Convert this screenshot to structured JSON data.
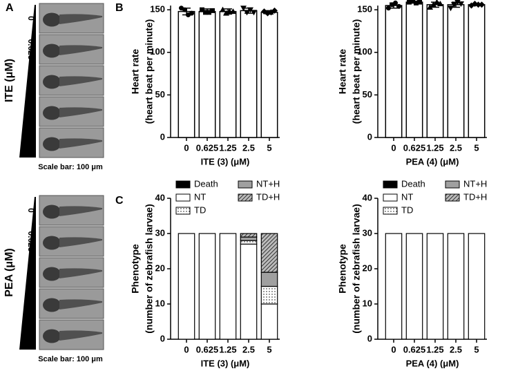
{
  "panel_a": {
    "label": "A",
    "groups": [
      {
        "title": "ITE (μM)",
        "doses": [
          "0",
          "0.625",
          "1.25",
          "2.5",
          "5"
        ],
        "scale_bar": "Scale bar: 100 μm"
      },
      {
        "title": "PEA (μM)",
        "doses": [
          "0",
          "0.625",
          "1.25",
          "2.5",
          "5"
        ],
        "scale_bar": "Scale bar: 100 μm"
      }
    ]
  },
  "chart_data": [
    {
      "type": "bar",
      "panel_label": "B",
      "y_label": [
        "Heart rate",
        "(heart beat per minute)"
      ],
      "x_label": "ITE (3) (μM)",
      "categories": [
        "0",
        "0.625",
        "1.25",
        "2.5",
        "5"
      ],
      "values": [
        148,
        148,
        148,
        149,
        147
      ],
      "errors": [
        4,
        3,
        3,
        3,
        2
      ],
      "points": [
        [
          152,
          150,
          144,
          146
        ],
        [
          150,
          147,
          147,
          149
        ],
        [
          150,
          146,
          148,
          148
        ],
        [
          152,
          147,
          150,
          147
        ],
        [
          148,
          146,
          147,
          149
        ]
      ],
      "markers": [
        "circle",
        "square",
        "triangle",
        "triangle-down",
        "diamond"
      ],
      "color": "#ffffff",
      "ylim": [
        0,
        155
      ],
      "yticks": [
        0,
        50,
        100,
        150
      ]
    },
    {
      "type": "bar",
      "y_label": [
        "Heart rate",
        "(heart beat per minute)"
      ],
      "x_label": "PEA (4) (μM)",
      "categories": [
        "0",
        "0.625",
        "1.25",
        "2.5",
        "5"
      ],
      "values": [
        155,
        159,
        156,
        156,
        156
      ],
      "errors": [
        3,
        1,
        3,
        3,
        1
      ],
      "points": [
        [
          152,
          156,
          158,
          154
        ],
        [
          159,
          160,
          158,
          159
        ],
        [
          153,
          156,
          159,
          157
        ],
        [
          152,
          156,
          159,
          157
        ],
        [
          155,
          157,
          156,
          156
        ]
      ],
      "markers": [
        "circle",
        "square",
        "triangle",
        "triangle-down",
        "diamond"
      ],
      "color": "#ffffff",
      "ylim": [
        0,
        155
      ],
      "yticks": [
        0,
        50,
        100,
        150
      ]
    },
    {
      "type": "stacked-bar",
      "panel_label": "C",
      "y_label": [
        "Phenotype",
        "(number of zebrafish larvae)"
      ],
      "x_label": "ITE (3) (μM)",
      "categories": [
        "0",
        "0.625",
        "1.25",
        "2.5",
        "5"
      ],
      "series": [
        {
          "name": "Death",
          "color": "#000000",
          "values": [
            0,
            0,
            0,
            0,
            0
          ]
        },
        {
          "name": "NT",
          "color": "#ffffff",
          "values": [
            30,
            30,
            30,
            27,
            10
          ]
        },
        {
          "name": "TD",
          "color": "#ffffff",
          "pattern": "dots",
          "values": [
            0,
            0,
            0,
            1,
            5
          ]
        },
        {
          "name": "NT+H",
          "color": "#a0a0a0",
          "values": [
            0,
            0,
            0,
            1,
            4
          ]
        },
        {
          "name": "TD+H",
          "color": "#ffffff",
          "pattern": "hatch",
          "values": [
            0,
            0,
            0,
            1,
            11
          ]
        }
      ],
      "ylim": [
        0,
        40
      ],
      "yticks": [
        0,
        10,
        20,
        30,
        40
      ]
    },
    {
      "type": "stacked-bar",
      "y_label": [
        "Phenotype",
        "(number of zebrafish larvae)"
      ],
      "x_label": "PEA (4) (μM)",
      "categories": [
        "0",
        "0.625",
        "1.25",
        "2.5",
        "5"
      ],
      "series": [
        {
          "name": "Death",
          "color": "#000000",
          "values": [
            0,
            0,
            0,
            0,
            0
          ]
        },
        {
          "name": "NT",
          "color": "#ffffff",
          "values": [
            30,
            30,
            30,
            30,
            30
          ]
        },
        {
          "name": "TD",
          "color": "#ffffff",
          "pattern": "dots",
          "values": [
            0,
            0,
            0,
            0,
            0
          ]
        },
        {
          "name": "NT+H",
          "color": "#a0a0a0",
          "values": [
            0,
            0,
            0,
            0,
            0
          ]
        },
        {
          "name": "TD+H",
          "color": "#ffffff",
          "pattern": "hatch",
          "values": [
            0,
            0,
            0,
            0,
            0
          ]
        }
      ],
      "ylim": [
        0,
        40
      ],
      "yticks": [
        0,
        10,
        20,
        30,
        40
      ]
    }
  ]
}
